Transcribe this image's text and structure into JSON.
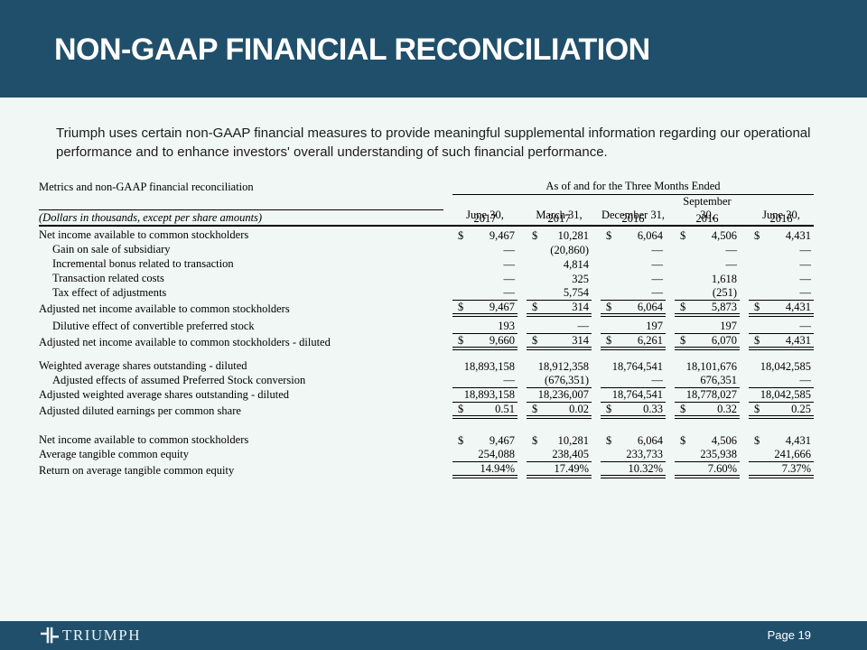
{
  "slide": {
    "title": "NON-GAAP FINANCIAL RECONCILIATION",
    "intro": "Triumph uses certain non-GAAP financial measures to provide meaningful supplemental information regarding our operational performance and to enhance investors' overall understanding of such financial performance.",
    "footer": {
      "logo_text": "TRIUMPH",
      "logo_icon": "triumph-cross-icon",
      "page_label": "Page 19"
    },
    "colors": {
      "header_bg": "#204F6B",
      "footer_bg": "#204F6B",
      "body_bg": "#F0F7F5",
      "title_text": "#FFFFFF",
      "table_text": "#000000"
    }
  },
  "table": {
    "title_left": "Metrics and non-GAAP financial reconciliation",
    "span_header": "As of and for the Three Months Ended",
    "subtitle_left": "(Dollars in thousands, except per share amounts)",
    "columns": [
      {
        "line1": "June 30,",
        "line2": "2017"
      },
      {
        "line1": "March 31,",
        "line2": "2017"
      },
      {
        "line1": "December 31,",
        "line2": "2016"
      },
      {
        "line1": "September 30,",
        "line2": "2016"
      },
      {
        "line1": "June 30,",
        "line2": "2016"
      }
    ],
    "groups": [
      {
        "rows": [
          {
            "label": "Net income available to common stockholders",
            "indent": false,
            "dollar": true,
            "underline": "none",
            "values": [
              "9,467",
              "10,281",
              "6,064",
              "4,506",
              "4,431"
            ]
          },
          {
            "label": "Gain on sale of subsidiary",
            "indent": true,
            "dollar": false,
            "underline": "none",
            "values": [
              "—",
              "(20,860)",
              "—",
              "—",
              "—"
            ]
          },
          {
            "label": "Incremental bonus related to transaction",
            "indent": true,
            "dollar": false,
            "underline": "none",
            "values": [
              "—",
              "4,814",
              "—",
              "—",
              "—"
            ]
          },
          {
            "label": "Transaction related costs",
            "indent": true,
            "dollar": false,
            "underline": "none",
            "values": [
              "—",
              "325",
              "—",
              "1,618",
              "—"
            ]
          },
          {
            "label": "Tax effect of adjustments",
            "indent": true,
            "dollar": false,
            "underline": "single",
            "values": [
              "—",
              "5,754",
              "—",
              "(251)",
              "—"
            ]
          },
          {
            "label": "Adjusted net income available to common stockholders",
            "indent": false,
            "dollar": true,
            "underline": "double",
            "values": [
              "9,467",
              "314",
              "6,064",
              "5,873",
              "4,431"
            ]
          }
        ]
      },
      {
        "rows": [
          {
            "label": "Dilutive effect of convertible preferred stock",
            "indent": true,
            "dollar": false,
            "underline": "single",
            "values": [
              "193",
              "—",
              "197",
              "197",
              "—"
            ]
          },
          {
            "label": "Adjusted net income available to common stockholders - diluted",
            "indent": false,
            "dollar": true,
            "underline": "double",
            "values": [
              "9,660",
              "314",
              "6,261",
              "6,070",
              "4,431"
            ]
          }
        ]
      },
      {
        "rows": [
          {
            "label": "Weighted average shares outstanding - diluted",
            "indent": false,
            "dollar": false,
            "underline": "none",
            "values": [
              "18,893,158",
              "18,912,358",
              "18,764,541",
              "18,101,676",
              "18,042,585"
            ]
          },
          {
            "label": "Adjusted effects of assumed Preferred Stock conversion",
            "indent": true,
            "dollar": false,
            "underline": "single",
            "values": [
              "—",
              "(676,351)",
              "—",
              "676,351",
              "—"
            ]
          },
          {
            "label": "Adjusted weighted average shares outstanding - diluted",
            "indent": false,
            "dollar": false,
            "underline": "single",
            "values": [
              "18,893,158",
              "18,236,007",
              "18,764,541",
              "18,778,027",
              "18,042,585"
            ]
          },
          {
            "label": "Adjusted diluted earnings per common share",
            "indent": false,
            "dollar": true,
            "underline": "double",
            "values": [
              "0.51",
              "0.02",
              "0.33",
              "0.32",
              "0.25"
            ]
          }
        ]
      },
      {
        "rows": [
          {
            "label": "Net income available to common stockholders",
            "indent": false,
            "dollar": true,
            "underline": "none",
            "values": [
              "9,467",
              "10,281",
              "6,064",
              "4,506",
              "4,431"
            ]
          },
          {
            "label": "Average tangible common equity",
            "indent": false,
            "dollar": false,
            "underline": "single",
            "values": [
              "254,088",
              "238,405",
              "233,733",
              "235,938",
              "241,666"
            ]
          },
          {
            "label": "Return on average tangible common equity",
            "indent": false,
            "dollar": false,
            "underline": "double",
            "values": [
              "14.94%",
              "17.49%",
              "10.32%",
              "7.60%",
              "7.37%"
            ]
          }
        ]
      }
    ]
  }
}
